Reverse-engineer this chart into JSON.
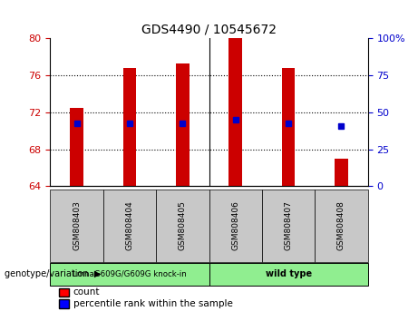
{
  "title": "GDS4490 / 10545672",
  "samples": [
    "GSM808403",
    "GSM808404",
    "GSM808405",
    "GSM808406",
    "GSM808407",
    "GSM808408"
  ],
  "bar_bottoms": [
    64,
    64,
    64,
    64,
    64,
    64
  ],
  "bar_tops": [
    72.5,
    76.8,
    77.3,
    80.0,
    76.8,
    67.0
  ],
  "percentile_values": [
    70.8,
    70.8,
    70.8,
    71.2,
    70.8,
    70.5
  ],
  "ylim": [
    64,
    80
  ],
  "yticks_left": [
    64,
    68,
    72,
    76,
    80
  ],
  "right_tick_positions": [
    64,
    68,
    72,
    76,
    80
  ],
  "right_tick_labels": [
    "0",
    "25",
    "50",
    "75",
    "100%"
  ],
  "left_color": "#cc0000",
  "right_color": "#0000cc",
  "bar_color": "#cc0000",
  "percentile_color": "#0000cc",
  "group1_label": "LmnaG609G/G609G knock-in",
  "group2_label": "wild type",
  "group_boundary": 2.5,
  "group_color": "#90ee90",
  "sample_bg_color": "#c8c8c8",
  "genotype_label": "genotype/variation",
  "legend_count_label": "count",
  "legend_percentile_label": "percentile rank within the sample",
  "bar_width": 0.25
}
